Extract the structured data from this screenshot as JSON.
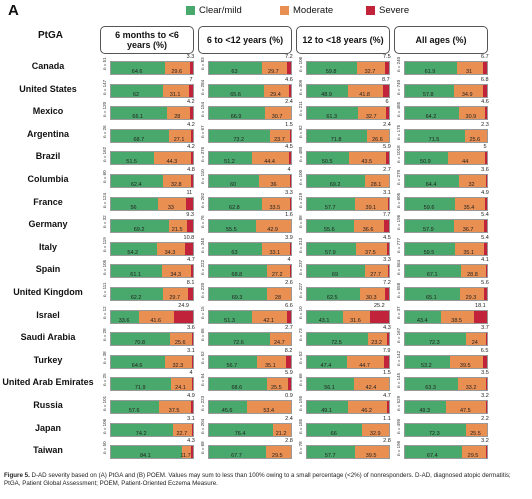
{
  "chart_data": {
    "type": "bar",
    "orientation": "horizontal",
    "stacked": true,
    "panel": "A",
    "legend": [
      "Clear/mild",
      "Moderate",
      "Severe"
    ],
    "colors": {
      "clear_mild": "#49a86b",
      "moderate": "#e98f52",
      "severe": "#c0233a"
    },
    "row_header": "PtGA",
    "groups": [
      "6 months to <6 years (%)",
      "6 to <12 years (%)",
      "12 to <18 years (%)",
      "All ages (%)"
    ],
    "xlim": [
      0,
      100
    ],
    "rows": [
      {
        "country": "Canada",
        "n": [
          "n = 51",
          "n = 83",
          "n = 106",
          "n = 240"
        ],
        "clear_mild": [
          64.6,
          63.0,
          59.8,
          61.9
        ],
        "moderate": [
          29.6,
          29.7,
          32.7,
          31.0
        ],
        "severe": [
          3.3,
          7.2,
          7.5,
          6.7
        ]
      },
      {
        "country": "United States",
        "n": [
          "n = 147",
          "n = 284",
          "n = 309",
          "n = 740"
        ],
        "clear_mild": [
          62.0,
          65.6,
          48.9,
          57.8
        ],
        "moderate": [
          31.1,
          29.4,
          41.8,
          34.9
        ],
        "severe": [
          7.0,
          4.6,
          8.7,
          6.8
        ]
      },
      {
        "country": "Mexico",
        "n": [
          "n = 120",
          "n = 154",
          "n = 211",
          "n = 485"
        ],
        "clear_mild": [
          66.1,
          66.9,
          61.3,
          64.2
        ],
        "moderate": [
          28.0,
          30.7,
          32.7,
          30.9
        ],
        "severe": [
          4.2,
          2.4,
          6.0,
          4.6
        ]
      },
      {
        "country": "Argentina",
        "n": [
          "n = 26",
          "n = 67",
          "n = 82",
          "n = 175"
        ],
        "clear_mild": [
          68.7,
          73.2,
          71.8,
          71.5
        ],
        "moderate": [
          27.1,
          23.7,
          26.6,
          25.6
        ],
        "severe": [
          4.2,
          1.5,
          2.4,
          2.3
        ]
      },
      {
        "country": "Brazil",
        "n": [
          "n = 162",
          "n = 376",
          "n = 480",
          "n = 1018"
        ],
        "clear_mild": [
          51.5,
          51.2,
          50.5,
          50.9
        ],
        "moderate": [
          44.3,
          44.4,
          43.5,
          44.0
        ],
        "severe": [
          4.2,
          4.5,
          5.9,
          5.0
        ]
      },
      {
        "country": "Columbia",
        "n": [
          "n = 60",
          "n = 110",
          "n = 100",
          "n = 270"
        ],
        "clear_mild": [
          62.4,
          60.0,
          69.2,
          64.4
        ],
        "moderate": [
          32.8,
          36.0,
          28.1,
          32.0
        ],
        "severe": [
          4.8,
          4.0,
          2.7,
          3.6
        ]
      },
      {
        "country": "France",
        "n": [
          "n = 124",
          "n = 262",
          "n = 219",
          "n = 605"
        ],
        "clear_mild": [
          56.0,
          62.8,
          57.7,
          59.6
        ],
        "moderate": [
          33.0,
          33.5,
          39.1,
          35.4
        ],
        "severe": [
          11.0,
          3.3,
          3.1,
          4.9
        ]
      },
      {
        "country": "Germany",
        "n": [
          "n = 32",
          "n = 76",
          "n = 88",
          "n = 196"
        ],
        "clear_mild": [
          69.2,
          55.5,
          55.6,
          57.9
        ],
        "moderate": [
          21.5,
          42.9,
          36.6,
          36.7
        ],
        "severe": [
          9.3,
          1.6,
          7.7,
          5.4
        ]
      },
      {
        "country": "Italy",
        "n": [
          "n = 119",
          "n = 345",
          "n = 313",
          "n = 777"
        ],
        "clear_mild": [
          54.2,
          63.0,
          57.9,
          59.5
        ],
        "moderate": [
          34.3,
          33.1,
          37.5,
          35.1
        ],
        "severe": [
          10.8,
          3.9,
          4.5,
          5.4
        ]
      },
      {
        "country": "Spain",
        "n": [
          "n = 105",
          "n = 222",
          "n = 237",
          "n = 564"
        ],
        "clear_mild": [
          61.1,
          68.8,
          69.0,
          67.1
        ],
        "moderate": [
          34.3,
          27.2,
          27.7,
          28.8
        ],
        "severe": [
          4.7,
          4.0,
          3.3,
          4.1
        ]
      },
      {
        "country": "United Kingdom",
        "n": [
          "n = 111",
          "n = 220",
          "n = 227",
          "n = 558"
        ],
        "clear_mild": [
          62.2,
          69.3,
          62.5,
          65.1
        ],
        "moderate": [
          29.7,
          28.0,
          30.3,
          29.3
        ],
        "severe": [
          8.1,
          2.6,
          7.2,
          5.6
        ]
      },
      {
        "country": "Israel",
        "n": [
          "n = 12",
          "n = 15",
          "n = 10",
          "n = 37"
        ],
        "clear_mild": [
          33.6,
          51.3,
          43.1,
          43.4
        ],
        "moderate": [
          41.6,
          42.1,
          31.6,
          38.5
        ],
        "severe": [
          24.9,
          6.6,
          25.2,
          18.1
        ]
      },
      {
        "country": "Saudi Arabia",
        "n": [
          "n = 28",
          "n = 66",
          "n = 73",
          "n = 167"
        ],
        "clear_mild": [
          70.8,
          72.6,
          72.5,
          72.3
        ],
        "moderate": [
          25.6,
          24.7,
          23.2,
          24.0
        ],
        "severe": [
          3.6,
          2.7,
          4.3,
          3.7
        ]
      },
      {
        "country": "Turkey",
        "n": [
          "n = 38",
          "n = 52",
          "n = 52",
          "n = 142"
        ],
        "clear_mild": [
          64.6,
          56.7,
          47.4,
          53.2
        ],
        "moderate": [
          32.3,
          35.1,
          44.7,
          39.5
        ],
        "severe": [
          3.1,
          8.2,
          7.9,
          6.5
        ]
      },
      {
        "country": "United Arab Emirates",
        "n": [
          "n = 25",
          "n = 54",
          "n = 66",
          "n = 145"
        ],
        "clear_mild": [
          71.9,
          68.6,
          56.1,
          63.3
        ],
        "moderate": [
          24.1,
          25.5,
          42.4,
          33.2
        ],
        "severe": [
          4.0,
          5.9,
          1.5,
          3.5
        ]
      },
      {
        "country": "Russia",
        "n": [
          "n = 101",
          "n = 223",
          "n = 195",
          "n = 529"
        ],
        "clear_mild": [
          57.6,
          45.6,
          49.1,
          49.3
        ],
        "moderate": [
          37.5,
          53.4,
          46.2,
          47.5
        ],
        "severe": [
          4.9,
          0.9,
          4.7,
          3.2
        ]
      },
      {
        "country": "Japan",
        "n": [
          "n = 106",
          "n = 204",
          "n = 185",
          "n = 495"
        ],
        "clear_mild": [
          74.2,
          76.4,
          66.0,
          72.3
        ],
        "moderate": [
          22.7,
          21.2,
          32.9,
          25.5
        ],
        "severe": [
          3.1,
          2.4,
          1.1,
          2.2
        ]
      },
      {
        "country": "Taiwan",
        "n": [
          "n = 50",
          "n = 68",
          "n = 78",
          "n = 196"
        ],
        "clear_mild": [
          84.1,
          67.7,
          57.7,
          67.4
        ],
        "moderate": [
          11.7,
          29.5,
          39.5,
          29.5
        ],
        "severe": [
          4.3,
          2.8,
          2.8,
          3.2
        ]
      }
    ]
  },
  "caption": {
    "label": "Figure 5.",
    "text": "D-AD severity based on (A) PtGA and (B) POEM. Values may sum to less than 100% owing to a small percentage (<2%) of nonresponders. D-AD, diagnosed atopic dermatitis; PtGA, Patient Global Assessment; POEM, Patient-Oriented Eczema Measure."
  }
}
